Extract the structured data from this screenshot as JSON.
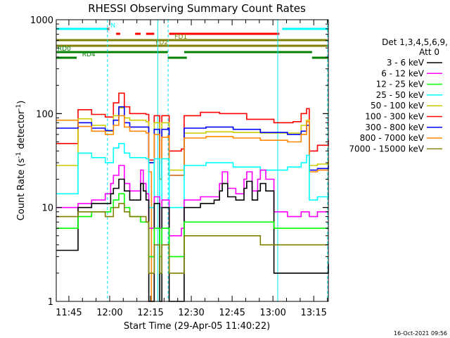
{
  "chart_data": {
    "type": "line",
    "title": "RHESSI Observing Summary Count Rates",
    "xlabel": "Start Time (29-Apr-05 11:40:22)",
    "ylabel_main": "Count Rate (s",
    "ylabel_sup1": "-1",
    "ylabel_mid": " detector",
    "ylabel_sup2": "-1",
    "ylabel_end": ")",
    "yscale": "log",
    "ylim": [
      1,
      1000
    ],
    "xlim_min": [
      0,
      100
    ],
    "y_ticks": [
      {
        "v": 1,
        "label": "1"
      },
      {
        "v": 10,
        "label": "10"
      },
      {
        "v": 100,
        "label": "100"
      },
      {
        "v": 1000,
        "label": "1000"
      }
    ],
    "x_ticks": [
      {
        "t": 4.63,
        "label": "11:45"
      },
      {
        "t": 19.63,
        "label": "12:00"
      },
      {
        "t": 34.63,
        "label": "12:15"
      },
      {
        "t": 49.63,
        "label": "12:30"
      },
      {
        "t": 64.63,
        "label": "12:45"
      },
      {
        "t": 79.63,
        "label": "13:00"
      },
      {
        "t": 94.63,
        "label": "13:15"
      }
    ],
    "legend_header": [
      "Det 1,3,4,5,6,9,",
      "Att 0"
    ],
    "legend": [
      {
        "label": "3 - 6 keV",
        "color": "#000000"
      },
      {
        "label": "6 - 12 keV",
        "color": "#ff00ff"
      },
      {
        "label": "12 - 25 keV",
        "color": "#00ff00"
      },
      {
        "label": "25 - 50 keV",
        "color": "#00ffff"
      },
      {
        "label": "50 - 100 keV",
        "color": "#cccc00"
      },
      {
        "label": "100 - 300 keV",
        "color": "#ff0000"
      },
      {
        "label": "300 - 800 keV",
        "color": "#0000ff"
      },
      {
        "label": "800 - 7000 keV",
        "color": "#ff8800"
      },
      {
        "label": "7000 - 15000 keV",
        "color": "#808000"
      }
    ],
    "series": [
      {
        "color": "#ff0000",
        "points": [
          [
            0,
            48
          ],
          [
            7,
            48
          ],
          [
            8,
            110
          ],
          [
            13,
            98
          ],
          [
            18,
            92
          ],
          [
            21,
            130
          ],
          [
            23,
            165
          ],
          [
            25,
            118
          ],
          [
            27,
            100
          ],
          [
            33,
            98
          ],
          [
            34,
            32
          ],
          [
            36,
            95
          ],
          [
            38,
            20
          ],
          [
            38.8,
            95
          ],
          [
            41,
            95
          ],
          [
            41.5,
            40
          ],
          [
            46,
            42
          ],
          [
            47,
            95
          ],
          [
            53,
            103
          ],
          [
            60,
            100
          ],
          [
            70,
            87
          ],
          [
            80,
            80
          ],
          [
            87,
            82
          ],
          [
            90,
            100
          ],
          [
            92,
            113
          ],
          [
            93,
            40
          ],
          [
            96,
            46
          ],
          [
            100,
            52
          ]
        ]
      },
      {
        "color": "#cccc00",
        "points": [
          [
            0,
            28
          ],
          [
            7,
            28
          ],
          [
            8,
            88
          ],
          [
            13,
            75
          ],
          [
            18,
            65
          ],
          [
            21,
            95
          ],
          [
            23,
            115
          ],
          [
            25,
            90
          ],
          [
            27,
            85
          ],
          [
            33,
            82
          ],
          [
            34,
            30
          ],
          [
            36,
            80
          ],
          [
            38,
            20
          ],
          [
            38.8,
            80
          ],
          [
            41,
            80
          ],
          [
            41.5,
            25
          ],
          [
            46,
            25
          ],
          [
            47,
            62
          ],
          [
            55,
            64
          ],
          [
            65,
            63
          ],
          [
            75,
            62
          ],
          [
            85,
            62
          ],
          [
            90,
            75
          ],
          [
            92,
            85
          ],
          [
            93,
            28
          ],
          [
            96,
            29
          ],
          [
            100,
            32
          ]
        ]
      },
      {
        "color": "#0000ff",
        "points": [
          [
            0,
            70
          ],
          [
            7,
            70
          ],
          [
            8,
            80
          ],
          [
            13,
            70
          ],
          [
            18,
            66
          ],
          [
            21,
            85
          ],
          [
            23,
            118
          ],
          [
            25,
            80
          ],
          [
            27,
            72
          ],
          [
            33,
            72
          ],
          [
            34,
            30
          ],
          [
            36,
            68
          ],
          [
            38,
            20
          ],
          [
            38.8,
            68
          ],
          [
            41,
            70
          ],
          [
            41.5,
            22
          ],
          [
            46,
            22
          ],
          [
            47,
            70
          ],
          [
            55,
            72
          ],
          [
            65,
            68
          ],
          [
            75,
            63
          ],
          [
            85,
            60
          ],
          [
            90,
            65
          ],
          [
            92,
            75
          ],
          [
            93,
            25
          ],
          [
            96,
            26
          ],
          [
            100,
            28
          ]
        ]
      },
      {
        "color": "#ff8800",
        "points": [
          [
            0,
            85
          ],
          [
            7,
            85
          ],
          [
            8,
            73
          ],
          [
            13,
            65
          ],
          [
            18,
            60
          ],
          [
            21,
            75
          ],
          [
            23,
            95
          ],
          [
            25,
            72
          ],
          [
            27,
            65
          ],
          [
            33,
            62
          ],
          [
            34,
            24
          ],
          [
            35,
            1
          ],
          [
            36,
            60
          ],
          [
            38,
            20
          ],
          [
            38.8,
            56
          ],
          [
            41,
            58
          ],
          [
            41.5,
            22
          ],
          [
            46,
            22
          ],
          [
            47,
            55
          ],
          [
            55,
            57
          ],
          [
            65,
            55
          ],
          [
            75,
            52
          ],
          [
            85,
            50
          ],
          [
            90,
            60
          ],
          [
            92,
            82
          ],
          [
            93,
            24
          ],
          [
            96,
            25
          ],
          [
            100,
            25
          ]
        ]
      },
      {
        "color": "#00ffff",
        "points": [
          [
            0,
            14
          ],
          [
            7,
            14
          ],
          [
            8,
            38
          ],
          [
            13,
            34
          ],
          [
            18,
            30
          ],
          [
            21,
            43
          ],
          [
            23,
            48
          ],
          [
            25,
            38
          ],
          [
            27,
            34
          ],
          [
            33,
            33
          ],
          [
            34,
            10
          ],
          [
            36,
            33
          ],
          [
            38,
            10
          ],
          [
            38.8,
            33
          ],
          [
            41,
            33
          ],
          [
            41.5,
            10
          ],
          [
            46,
            10
          ],
          [
            47,
            28
          ],
          [
            55,
            30
          ],
          [
            65,
            27
          ],
          [
            75,
            25
          ],
          [
            85,
            27
          ],
          [
            90,
            30
          ],
          [
            92,
            36
          ],
          [
            93,
            12
          ],
          [
            96,
            13
          ],
          [
            100,
            14
          ]
        ]
      },
      {
        "color": "#ff00ff",
        "points": [
          [
            0,
            10
          ],
          [
            7,
            10
          ],
          [
            8,
            11
          ],
          [
            13,
            12
          ],
          [
            18,
            14
          ],
          [
            20,
            18
          ],
          [
            21,
            22
          ],
          [
            23,
            28
          ],
          [
            25,
            18
          ],
          [
            27,
            15
          ],
          [
            31,
            25
          ],
          [
            32,
            18
          ],
          [
            33,
            14
          ],
          [
            34,
            6
          ],
          [
            36,
            13
          ],
          [
            38,
            6
          ],
          [
            38.8,
            12
          ],
          [
            41,
            12
          ],
          [
            41.5,
            5
          ],
          [
            46,
            6
          ],
          [
            47,
            12
          ],
          [
            53,
            13
          ],
          [
            58,
            13
          ],
          [
            60,
            18
          ],
          [
            61,
            24
          ],
          [
            63,
            16
          ],
          [
            66,
            14
          ],
          [
            69,
            20
          ],
          [
            70,
            24
          ],
          [
            72,
            15
          ],
          [
            74,
            20
          ],
          [
            75,
            25
          ],
          [
            77,
            20
          ],
          [
            80,
            9
          ],
          [
            85,
            8
          ],
          [
            90,
            9
          ],
          [
            92,
            9
          ],
          [
            93,
            8
          ],
          [
            96,
            9
          ],
          [
            100,
            9
          ]
        ]
      },
      {
        "color": "#000000",
        "points": [
          [
            0,
            3.5
          ],
          [
            7,
            3.5
          ],
          [
            8,
            10
          ],
          [
            13,
            11
          ],
          [
            18,
            11
          ],
          [
            20,
            14
          ],
          [
            21,
            16
          ],
          [
            23,
            20
          ],
          [
            25,
            15
          ],
          [
            27,
            12
          ],
          [
            31,
            18
          ],
          [
            32,
            15
          ],
          [
            33,
            12
          ],
          [
            34,
            1
          ],
          [
            36,
            11
          ],
          [
            38,
            1
          ],
          [
            38.8,
            10
          ],
          [
            41,
            10
          ],
          [
            41.5,
            1
          ],
          [
            46,
            1
          ],
          [
            47,
            10
          ],
          [
            53,
            11
          ],
          [
            58,
            12
          ],
          [
            60,
            15
          ],
          [
            61,
            18
          ],
          [
            63,
            13
          ],
          [
            66,
            12
          ],
          [
            69,
            16
          ],
          [
            70,
            19
          ],
          [
            72,
            12
          ],
          [
            74,
            15
          ],
          [
            75,
            18
          ],
          [
            77,
            15
          ],
          [
            80,
            2
          ],
          [
            85,
            2
          ],
          [
            90,
            2
          ],
          [
            92,
            2
          ],
          [
            93,
            2
          ],
          [
            96,
            2
          ],
          [
            100,
            2.5
          ]
        ]
      },
      {
        "color": "#00ff00",
        "points": [
          [
            0,
            6
          ],
          [
            7,
            6
          ],
          [
            8,
            8
          ],
          [
            13,
            9
          ],
          [
            18,
            9
          ],
          [
            20,
            10
          ],
          [
            21,
            12
          ],
          [
            23,
            14
          ],
          [
            25,
            10
          ],
          [
            27,
            8
          ],
          [
            31,
            7
          ],
          [
            33,
            7
          ],
          [
            34,
            3
          ],
          [
            36,
            6
          ],
          [
            38,
            3
          ],
          [
            38.8,
            6
          ],
          [
            41,
            6
          ],
          [
            41.5,
            3
          ],
          [
            46,
            3
          ],
          [
            47,
            7
          ],
          [
            55,
            7
          ],
          [
            65,
            7
          ],
          [
            75,
            7
          ],
          [
            80,
            6
          ],
          [
            85,
            6
          ],
          [
            90,
            6
          ],
          [
            92,
            6
          ],
          [
            93,
            6
          ],
          [
            96,
            6
          ],
          [
            100,
            6
          ]
        ]
      },
      {
        "color": "#808000",
        "points": [
          [
            0,
            8
          ],
          [
            7,
            8
          ],
          [
            8,
            9
          ],
          [
            13,
            9
          ],
          [
            18,
            8
          ],
          [
            21,
            10
          ],
          [
            23,
            11
          ],
          [
            25,
            9
          ],
          [
            27,
            8
          ],
          [
            33,
            7
          ],
          [
            34,
            2
          ],
          [
            36,
            4
          ],
          [
            38,
            2
          ],
          [
            38.8,
            4
          ],
          [
            41,
            4
          ],
          [
            41.5,
            2
          ],
          [
            46,
            2
          ],
          [
            47,
            5
          ],
          [
            55,
            5
          ],
          [
            65,
            5
          ],
          [
            75,
            4
          ],
          [
            80,
            4
          ],
          [
            85,
            4
          ],
          [
            90,
            4
          ],
          [
            92,
            4
          ],
          [
            93,
            4
          ],
          [
            96,
            4
          ],
          [
            100,
            4
          ]
        ]
      }
    ],
    "flag_bars": [
      {
        "label": "N",
        "color": "#00ffff",
        "segments": [
          [
            0,
            19.5
          ],
          [
            83,
            100
          ]
        ],
        "label_t": 20,
        "y": 41
      },
      {
        "label": "F",
        "color": "#ff0000",
        "segments": [
          [
            22,
            23.5
          ],
          [
            29,
            31
          ],
          [
            33,
            36
          ],
          [
            41.5,
            82
          ]
        ],
        "label_t": 18.5,
        "y": 48
      },
      {
        "label": "FD1",
        "color": "#808000",
        "segments": [
          [
            0,
            100
          ]
        ],
        "label_t": 43.5,
        "y": 57
      },
      {
        "label": "FD2",
        "color": "#808000",
        "segments": [
          [
            0,
            100
          ]
        ],
        "label_t": 36.5,
        "y": 65
      },
      {
        "label": "RD0",
        "color": "#008000",
        "segments": [
          [
            0,
            41
          ],
          [
            47,
            94
          ]
        ],
        "label_t": 0.5,
        "y": 74
      },
      {
        "label": "RD4",
        "color": "#008000",
        "segments": [
          [
            0,
            7.5
          ],
          [
            41,
            48
          ],
          [
            94,
            100
          ]
        ],
        "label_t": 9.5,
        "y": 82
      }
    ],
    "vlines": [
      {
        "t": 0,
        "style": "solid"
      },
      {
        "t": 18.8,
        "style": "dashed"
      },
      {
        "t": 37.3,
        "style": "solid"
      },
      {
        "t": 41.1,
        "style": "dashed"
      },
      {
        "t": 81.4,
        "style": "solid"
      },
      {
        "t": 99.7,
        "style": "dashed"
      }
    ]
  },
  "timestamp": "16-Oct-2021 09:56"
}
